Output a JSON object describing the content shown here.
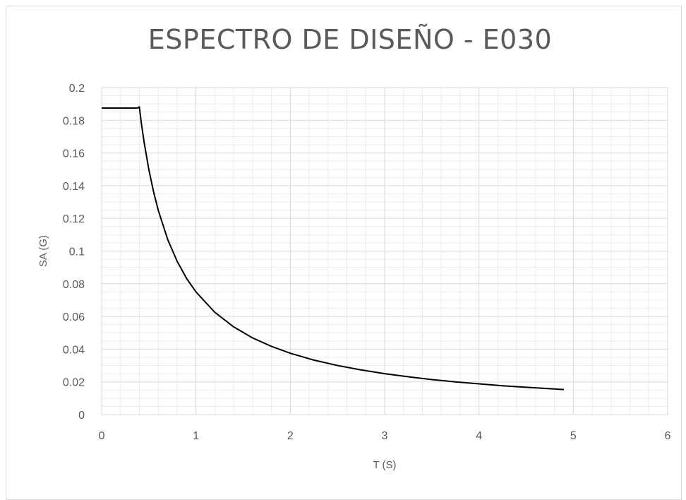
{
  "chart_data": {
    "type": "line",
    "title": "ESPECTRO DE DISEÑO - E030",
    "xlabel": "T (S)",
    "ylabel": "SA (G)",
    "xlim": [
      0,
      6
    ],
    "ylim": [
      0,
      0.2
    ],
    "x_ticks": [
      "0",
      "1",
      "2",
      "3",
      "4",
      "5",
      "6"
    ],
    "y_ticks": [
      "0",
      "0.02",
      "0.04",
      "0.06",
      "0.08",
      "0.1",
      "0.12",
      "0.14",
      "0.16",
      "0.18",
      "0.2"
    ],
    "grid": true,
    "minor_grid": true,
    "legend": false,
    "line_color": "#000000",
    "series": [
      {
        "x": [
          0,
          0.1,
          0.2,
          0.3,
          0.38,
          0.4,
          0.42,
          0.45,
          0.5,
          0.55,
          0.6,
          0.7,
          0.8,
          0.9,
          1.0,
          1.2,
          1.4,
          1.6,
          1.8,
          2.0,
          2.25,
          2.5,
          2.75,
          3.0,
          3.25,
          3.5,
          3.75,
          4.0,
          4.25,
          4.5,
          4.75,
          4.9
        ],
        "y": [
          0.1875,
          0.1875,
          0.1875,
          0.1875,
          0.1875,
          0.1881,
          0.1786,
          0.1667,
          0.15,
          0.1364,
          0.125,
          0.1071,
          0.0938,
          0.0833,
          0.075,
          0.0625,
          0.0536,
          0.0469,
          0.0417,
          0.0375,
          0.0333,
          0.03,
          0.0273,
          0.025,
          0.0231,
          0.0214,
          0.02,
          0.0188,
          0.0176,
          0.0167,
          0.0158,
          0.0153
        ]
      }
    ]
  }
}
